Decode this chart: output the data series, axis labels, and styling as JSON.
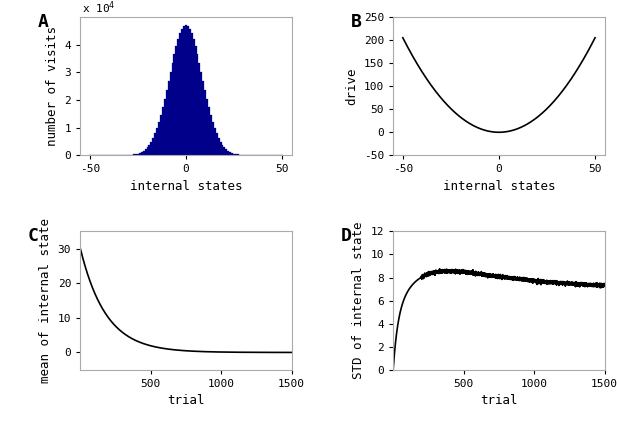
{
  "panel_A": {
    "title": "A",
    "hist_std": 8.5,
    "hist_peak": 47000,
    "bar_color": "#00008B",
    "xlabel": "internal states",
    "ylabel": "number of visits",
    "xlim": [
      -55,
      55
    ],
    "ylim": [
      0,
      50000
    ],
    "yticks": [
      0,
      10000,
      20000,
      30000,
      40000
    ],
    "ytick_labels": [
      "0",
      "1",
      "2",
      "3",
      "4"
    ],
    "xticks": [
      -50,
      0,
      50
    ]
  },
  "panel_B": {
    "title": "B",
    "xlabel": "internal states",
    "ylabel": "drive",
    "xlim": [
      -55,
      55
    ],
    "ylim": [
      -50,
      250
    ],
    "yticks": [
      -50,
      0,
      50,
      100,
      150,
      200,
      250
    ],
    "xticks": [
      -50,
      0,
      50
    ]
  },
  "panel_C": {
    "title": "C",
    "xlabel": "trial",
    "ylabel": "mean of internal state",
    "xlim": [
      0,
      1500
    ],
    "ylim": [
      -5,
      35
    ],
    "yticks": [
      0,
      10,
      20,
      30
    ],
    "xticks": [
      500,
      1000,
      1500
    ],
    "start_val": 30.2,
    "decay_rate": 0.0055,
    "trials": 1500
  },
  "panel_D": {
    "title": "D",
    "xlabel": "trial",
    "ylabel": "STD of internal state",
    "xlim": [
      0,
      1500
    ],
    "ylim": [
      0,
      12
    ],
    "yticks": [
      0,
      2,
      4,
      6,
      8,
      10,
      12
    ],
    "xticks": [
      500,
      1000,
      1500
    ],
    "trials": 1500
  },
  "line_color": "#000000",
  "line_width": 1.2,
  "font_family": "monospace",
  "label_fontsize": 9,
  "tick_fontsize": 8,
  "panel_label_fontsize": 13
}
